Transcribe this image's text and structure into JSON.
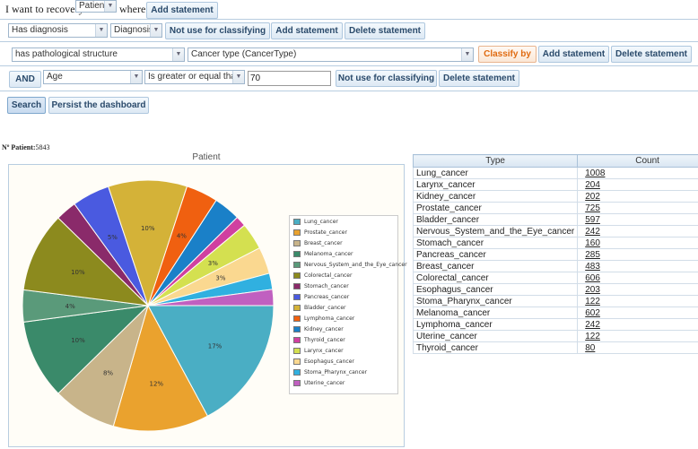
{
  "query": {
    "prefix": "I want to recovery",
    "entity": "Patient",
    "where": "where:",
    "add_statement": "Add statement"
  },
  "row1": {
    "property": "Has diagnosis",
    "class": "Diagnosis",
    "not_use": "Not use for classifying",
    "add_statement": "Add statement",
    "delete_statement": "Delete statement"
  },
  "row2": {
    "property": "has pathological structure",
    "class": "Cancer type (CancerType)",
    "classify": "Classify by",
    "add_statement": "Add statement",
    "delete_statement": "Delete statement"
  },
  "row3": {
    "connector": "AND",
    "property": "Age",
    "operator": "Is greater or equal than",
    "value": "70",
    "not_use": "Not use for classifying",
    "delete_statement": "Delete statement"
  },
  "actions": {
    "search": "Search",
    "persist": "Persist the dashboard"
  },
  "count_label": "Nº Patient:",
  "count_value": "5843",
  "chart_data": {
    "type": "pie",
    "title": "Patient",
    "legend_position": "right",
    "slices": [
      {
        "label": "Lung_cancer",
        "value": 1008,
        "color": "#4aaec4",
        "pct_label": "17%"
      },
      {
        "label": "Prostate_cancer",
        "value": 725,
        "color": "#eaa22e",
        "pct_label": "12%"
      },
      {
        "label": "Breast_cancer",
        "value": 483,
        "color": "#c8b48a",
        "pct_label": "8%"
      },
      {
        "label": "Melanoma_cancer",
        "value": 602,
        "color": "#3a8a6a",
        "pct_label": "10%"
      },
      {
        "label": "Nervous_System_and_the_Eye_cancer",
        "value": 242,
        "color": "#5a9a7a",
        "pct_label": "4%"
      },
      {
        "label": "Colorectal_cancer",
        "value": 606,
        "color": "#8c8a1e",
        "pct_label": "10%"
      },
      {
        "label": "Stomach_cancer",
        "value": 160,
        "color": "#8a2a6a",
        "pct_label": ""
      },
      {
        "label": "Pancreas_cancer",
        "value": 285,
        "color": "#4a5ae0",
        "pct_label": "5%"
      },
      {
        "label": "Bladder_cancer",
        "value": 597,
        "color": "#d4b238",
        "pct_label": "10%"
      },
      {
        "label": "Lymphoma_cancer",
        "value": 242,
        "color": "#f06010",
        "pct_label": "4%"
      },
      {
        "label": "Kidney_cancer",
        "value": 202,
        "color": "#1a80c8",
        "pct_label": ""
      },
      {
        "label": "Thyroid_cancer",
        "value": 80,
        "color": "#d040a0",
        "pct_label": ""
      },
      {
        "label": "Larynx_cancer",
        "value": 204,
        "color": "#d4e050",
        "pct_label": "3%"
      },
      {
        "label": "Esophagus_cancer",
        "value": 203,
        "color": "#fad890",
        "pct_label": "3%"
      },
      {
        "label": "Stoma_Pharynx_cancer",
        "value": 122,
        "color": "#30b0e0",
        "pct_label": ""
      },
      {
        "label": "Uterine_cancer",
        "value": 122,
        "color": "#c060c0",
        "pct_label": ""
      }
    ]
  },
  "table": {
    "headers": [
      "Type",
      "Count"
    ],
    "rows": [
      [
        "Lung_cancer",
        "1008"
      ],
      [
        "Larynx_cancer",
        "204"
      ],
      [
        "Kidney_cancer",
        "202"
      ],
      [
        "Prostate_cancer",
        "725"
      ],
      [
        "Bladder_cancer",
        "597"
      ],
      [
        "Nervous_System_and_the_Eye_cancer",
        "242"
      ],
      [
        "Stomach_cancer",
        "160"
      ],
      [
        "Pancreas_cancer",
        "285"
      ],
      [
        "Breast_cancer",
        "483"
      ],
      [
        "Colorectal_cancer",
        "606"
      ],
      [
        "Esophagus_cancer",
        "203"
      ],
      [
        "Stoma_Pharynx_cancer",
        "122"
      ],
      [
        "Melanoma_cancer",
        "602"
      ],
      [
        "Lymphoma_cancer",
        "242"
      ],
      [
        "Uterine_cancer",
        "122"
      ],
      [
        "Thyroid_cancer",
        "80"
      ]
    ]
  }
}
